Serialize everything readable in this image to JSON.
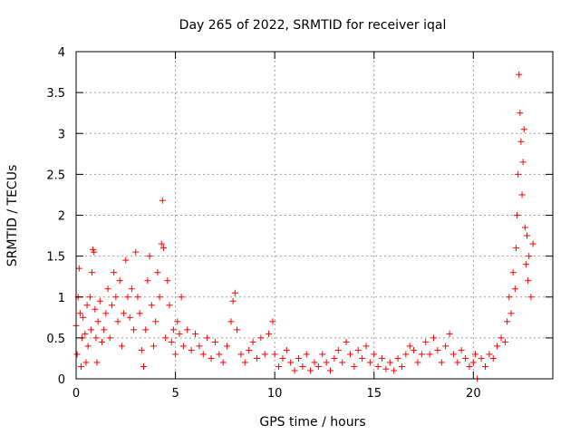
{
  "chart_data": {
    "type": "scatter",
    "title": "Day 265 of 2022, SRMTID for receiver iqal",
    "xlabel": "GPS time / hours",
    "ylabel": "SRMTID / TECUs",
    "xlim": [
      0,
      24
    ],
    "ylim": [
      0,
      4
    ],
    "grid": true,
    "xticks": [
      0,
      5,
      10,
      15,
      20
    ],
    "xtick_labels": [
      "0",
      "5",
      "10",
      "15",
      "20"
    ],
    "yticks": [
      0,
      0.5,
      1,
      1.5,
      2,
      2.5,
      3,
      3.5,
      4
    ],
    "ytick_labels": [
      "0",
      "0.5",
      "1",
      "1.5",
      "2",
      "2.5",
      "3",
      "3.5",
      "4"
    ],
    "series": [
      {
        "name": "SRMTID",
        "marker": "+",
        "color": "#ff0000",
        "points": [
          [
            0.0,
            0.65
          ],
          [
            0.05,
            0.3
          ],
          [
            0.1,
            1.0
          ],
          [
            0.15,
            1.35
          ],
          [
            0.2,
            0.8
          ],
          [
            0.25,
            0.15
          ],
          [
            0.3,
            0.5
          ],
          [
            0.35,
            0.75
          ],
          [
            0.45,
            0.55
          ],
          [
            0.5,
            0.2
          ],
          [
            0.55,
            0.9
          ],
          [
            0.6,
            0.4
          ],
          [
            0.7,
            1.0
          ],
          [
            0.75,
            0.6
          ],
          [
            0.8,
            1.3
          ],
          [
            0.85,
            1.58
          ],
          [
            0.9,
            1.55
          ],
          [
            0.95,
            0.85
          ],
          [
            1.0,
            0.5
          ],
          [
            1.05,
            0.2
          ],
          [
            1.1,
            0.7
          ],
          [
            1.2,
            0.95
          ],
          [
            1.3,
            0.45
          ],
          [
            1.4,
            0.6
          ],
          [
            1.5,
            0.8
          ],
          [
            1.6,
            1.1
          ],
          [
            1.7,
            0.5
          ],
          [
            1.8,
            0.9
          ],
          [
            1.9,
            1.3
          ],
          [
            2.0,
            1.0
          ],
          [
            2.1,
            0.7
          ],
          [
            2.2,
            1.2
          ],
          [
            2.3,
            0.4
          ],
          [
            2.4,
            0.8
          ],
          [
            2.5,
            1.45
          ],
          [
            2.6,
            1.0
          ],
          [
            2.7,
            0.75
          ],
          [
            2.8,
            1.1
          ],
          [
            2.9,
            0.6
          ],
          [
            3.0,
            1.55
          ],
          [
            3.1,
            1.0
          ],
          [
            3.2,
            0.8
          ],
          [
            3.3,
            0.35
          ],
          [
            3.4,
            0.15
          ],
          [
            3.5,
            0.6
          ],
          [
            3.6,
            1.2
          ],
          [
            3.7,
            1.5
          ],
          [
            3.8,
            0.9
          ],
          [
            3.9,
            0.4
          ],
          [
            4.0,
            0.7
          ],
          [
            4.1,
            1.3
          ],
          [
            4.2,
            1.0
          ],
          [
            4.3,
            1.65
          ],
          [
            4.35,
            2.18
          ],
          [
            4.4,
            1.6
          ],
          [
            4.5,
            0.5
          ],
          [
            4.6,
            1.2
          ],
          [
            4.7,
            0.9
          ],
          [
            4.8,
            0.45
          ],
          [
            4.9,
            0.6
          ],
          [
            5.0,
            0.3
          ],
          [
            5.1,
            0.7
          ],
          [
            5.2,
            0.55
          ],
          [
            5.3,
            1.0
          ],
          [
            5.4,
            0.4
          ],
          [
            5.6,
            0.6
          ],
          [
            5.8,
            0.35
          ],
          [
            6.0,
            0.55
          ],
          [
            6.2,
            0.4
          ],
          [
            6.4,
            0.3
          ],
          [
            6.6,
            0.5
          ],
          [
            6.8,
            0.25
          ],
          [
            7.0,
            0.45
          ],
          [
            7.2,
            0.3
          ],
          [
            7.4,
            0.2
          ],
          [
            7.6,
            0.4
          ],
          [
            7.8,
            0.7
          ],
          [
            7.9,
            0.95
          ],
          [
            8.0,
            1.05
          ],
          [
            8.1,
            0.6
          ],
          [
            8.3,
            0.3
          ],
          [
            8.5,
            0.2
          ],
          [
            8.7,
            0.35
          ],
          [
            8.9,
            0.45
          ],
          [
            9.1,
            0.25
          ],
          [
            9.3,
            0.5
          ],
          [
            9.5,
            0.3
          ],
          [
            9.7,
            0.55
          ],
          [
            9.9,
            0.7
          ],
          [
            10.0,
            0.3
          ],
          [
            10.2,
            0.15
          ],
          [
            10.4,
            0.25
          ],
          [
            10.6,
            0.35
          ],
          [
            10.8,
            0.2
          ],
          [
            11.0,
            0.1
          ],
          [
            11.2,
            0.25
          ],
          [
            11.4,
            0.15
          ],
          [
            11.6,
            0.3
          ],
          [
            11.8,
            0.1
          ],
          [
            12.0,
            0.2
          ],
          [
            12.2,
            0.15
          ],
          [
            12.4,
            0.3
          ],
          [
            12.6,
            0.2
          ],
          [
            12.8,
            0.1
          ],
          [
            13.0,
            0.25
          ],
          [
            13.2,
            0.35
          ],
          [
            13.4,
            0.2
          ],
          [
            13.6,
            0.45
          ],
          [
            13.8,
            0.3
          ],
          [
            14.0,
            0.15
          ],
          [
            14.2,
            0.35
          ],
          [
            14.4,
            0.25
          ],
          [
            14.6,
            0.4
          ],
          [
            14.8,
            0.2
          ],
          [
            15.0,
            0.3
          ],
          [
            15.2,
            0.15
          ],
          [
            15.4,
            0.25
          ],
          [
            15.6,
            0.12
          ],
          [
            15.8,
            0.2
          ],
          [
            16.0,
            0.1
          ],
          [
            16.2,
            0.25
          ],
          [
            16.4,
            0.15
          ],
          [
            16.6,
            0.3
          ],
          [
            16.8,
            0.4
          ],
          [
            17.0,
            0.35
          ],
          [
            17.2,
            0.2
          ],
          [
            17.4,
            0.3
          ],
          [
            17.6,
            0.45
          ],
          [
            17.8,
            0.3
          ],
          [
            18.0,
            0.5
          ],
          [
            18.2,
            0.35
          ],
          [
            18.4,
            0.2
          ],
          [
            18.6,
            0.4
          ],
          [
            18.8,
            0.55
          ],
          [
            19.0,
            0.3
          ],
          [
            19.2,
            0.2
          ],
          [
            19.4,
            0.35
          ],
          [
            19.6,
            0.25
          ],
          [
            19.8,
            0.15
          ],
          [
            20.0,
            0.2
          ],
          [
            20.1,
            0.3
          ],
          [
            20.2,
            0.0
          ],
          [
            20.4,
            0.25
          ],
          [
            20.6,
            0.15
          ],
          [
            20.8,
            0.3
          ],
          [
            21.0,
            0.25
          ],
          [
            21.2,
            0.4
          ],
          [
            21.4,
            0.5
          ],
          [
            21.6,
            0.45
          ],
          [
            21.7,
            0.7
          ],
          [
            21.8,
            1.0
          ],
          [
            21.9,
            0.8
          ],
          [
            22.0,
            1.3
          ],
          [
            22.1,
            1.1
          ],
          [
            22.15,
            1.6
          ],
          [
            22.2,
            2.0
          ],
          [
            22.25,
            2.5
          ],
          [
            22.3,
            3.72
          ],
          [
            22.35,
            3.25
          ],
          [
            22.4,
            2.9
          ],
          [
            22.45,
            2.25
          ],
          [
            22.5,
            2.65
          ],
          [
            22.55,
            3.05
          ],
          [
            22.6,
            1.85
          ],
          [
            22.65,
            1.4
          ],
          [
            22.7,
            1.75
          ],
          [
            22.75,
            1.2
          ],
          [
            22.8,
            1.5
          ],
          [
            22.9,
            1.0
          ],
          [
            23.0,
            1.65
          ]
        ]
      }
    ]
  }
}
